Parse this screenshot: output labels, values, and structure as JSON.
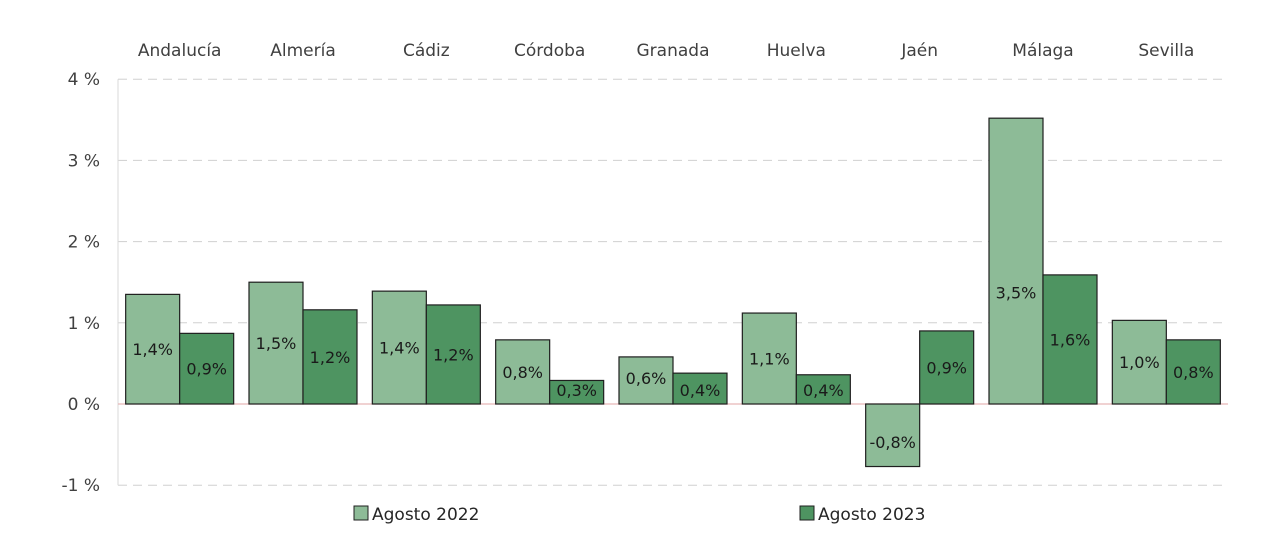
{
  "chart_data": {
    "type": "bar",
    "categories": [
      "Andalucía",
      "Almería",
      "Cádiz",
      "Córdoba",
      "Granada",
      "Huelva",
      "Jaén",
      "Málaga",
      "Sevilla"
    ],
    "series": [
      {
        "name": "Agosto 2022",
        "color": "#8dbb97",
        "values": [
          1.35,
          1.5,
          1.39,
          0.79,
          0.58,
          1.12,
          -0.77,
          3.52,
          1.03
        ],
        "labels": [
          "1,4%",
          "1,5%",
          "1,4%",
          "0,8%",
          "0,6%",
          "1,1%",
          "-0,8%",
          "3,5%",
          "1,0%"
        ]
      },
      {
        "name": "Agosto 2023",
        "color": "#4e9461",
        "values": [
          0.87,
          1.16,
          1.22,
          0.29,
          0.38,
          0.36,
          0.9,
          1.59,
          0.79
        ],
        "labels": [
          "0,9%",
          "1,2%",
          "1,2%",
          "0,3%",
          "0,4%",
          "0,4%",
          "0,9%",
          "1,6%",
          "0,8%"
        ]
      }
    ],
    "ylim": [
      -1,
      4
    ],
    "yticks": [
      4,
      3,
      2,
      1,
      0,
      -1
    ],
    "ytick_labels": [
      "4 %",
      "3 %",
      "2 %",
      "1 %",
      "0 %",
      "-1 %"
    ],
    "xlabel": "",
    "ylabel": "",
    "title": "",
    "grid": true,
    "category_label_position": "top",
    "legend_position": "bottom"
  }
}
